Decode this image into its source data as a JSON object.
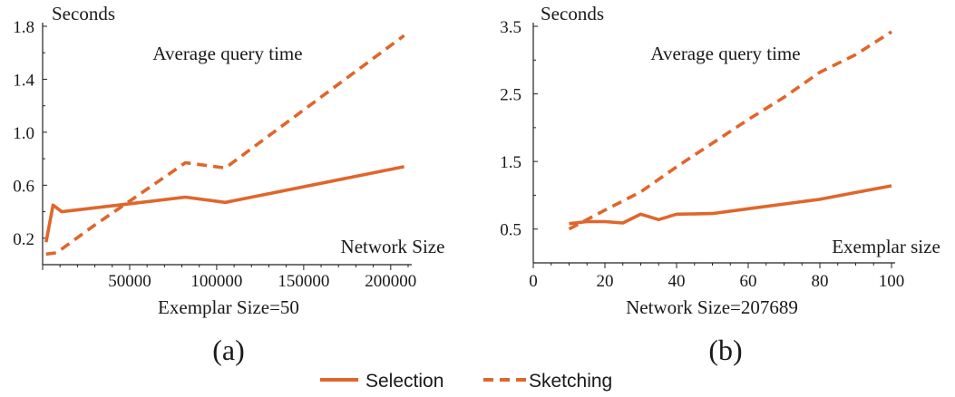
{
  "colors": {
    "series": "#e0662b",
    "axis": "#222222",
    "text": "#1a1a1a"
  },
  "legend": {
    "items": [
      {
        "name": "Selection",
        "style": "solid"
      },
      {
        "name": "Sketching",
        "style": "dashed"
      }
    ]
  },
  "chart_data": [
    {
      "type": "line",
      "panel_label": "(a)",
      "title": "Average query time",
      "ylabel": "Seconds",
      "xlabel_inline": "Network Size",
      "caption": "Exemplar Size=50",
      "xlim": [
        0,
        210000
      ],
      "ylim": [
        0,
        1.8
      ],
      "xticks": [
        50000,
        100000,
        150000,
        200000
      ],
      "xtick_labels": [
        "50000",
        "100000",
        "150000",
        "200000"
      ],
      "yticks": [
        0.2,
        0.6,
        1.0,
        1.4,
        1.8
      ],
      "ytick_labels": [
        "0.2",
        "0.6",
        "1.0",
        "1.4",
        "1.8"
      ],
      "series": [
        {
          "name": "Selection",
          "style": "solid",
          "x": [
            2000,
            6000,
            11000,
            50000,
            82000,
            105000,
            207689
          ],
          "y": [
            0.17,
            0.45,
            0.4,
            0.46,
            0.51,
            0.47,
            0.74
          ]
        },
        {
          "name": "Sketching",
          "style": "dashed",
          "x": [
            2000,
            8000,
            30000,
            50000,
            82000,
            105000,
            207689
          ],
          "y": [
            0.08,
            0.09,
            0.3,
            0.48,
            0.77,
            0.73,
            1.73
          ]
        }
      ]
    },
    {
      "type": "line",
      "panel_label": "(b)",
      "title": "Average query time",
      "ylabel": "Seconds",
      "xlabel_inline": "Exemplar size",
      "caption": "Network Size=207689",
      "xlim": [
        0,
        100
      ],
      "ylim": [
        0,
        3.5
      ],
      "xticks": [
        0,
        20,
        40,
        60,
        80,
        100
      ],
      "xtick_labels": [
        "0",
        "20",
        "40",
        "60",
        "80",
        "100"
      ],
      "yticks": [
        0.5,
        1.5,
        2.5,
        3.5
      ],
      "ytick_labels": [
        "0.5",
        "1.5",
        "2.5",
        "3.5"
      ],
      "series": [
        {
          "name": "Selection",
          "style": "solid",
          "x": [
            10,
            15,
            20,
            25,
            30,
            35,
            40,
            50,
            60,
            70,
            80,
            90,
            100
          ],
          "y": [
            0.58,
            0.61,
            0.61,
            0.59,
            0.72,
            0.64,
            0.72,
            0.73,
            0.8,
            0.87,
            0.94,
            1.04,
            1.14
          ]
        },
        {
          "name": "Sketching",
          "style": "dashed",
          "x": [
            10,
            20,
            30,
            40,
            50,
            60,
            70,
            80,
            90,
            100
          ],
          "y": [
            0.5,
            0.78,
            1.05,
            1.42,
            1.77,
            2.12,
            2.45,
            2.82,
            3.08,
            3.42
          ]
        }
      ]
    }
  ]
}
